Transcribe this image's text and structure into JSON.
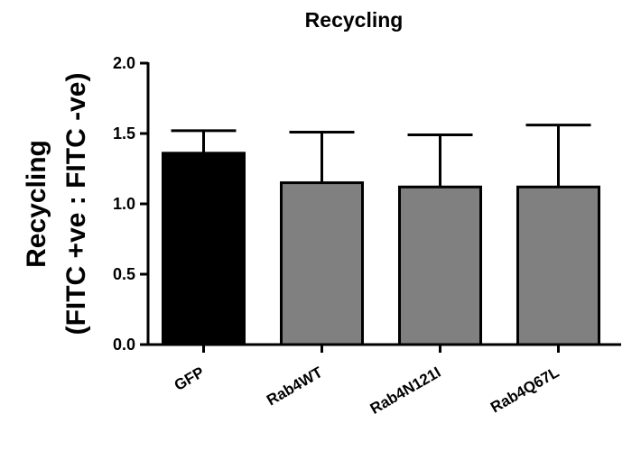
{
  "chart_data": {
    "type": "bar",
    "title": "Recycling",
    "ylabel_line1": "Recycling",
    "ylabel_line2": "(FITC  +ve : FITC -ve)",
    "xlabel": "",
    "categories": [
      "GFP",
      "Rab4WT",
      "Rab4N121I",
      "Rab4Q67L"
    ],
    "values": [
      1.36,
      1.15,
      1.12,
      1.12
    ],
    "errors": [
      0.16,
      0.36,
      0.37,
      0.44
    ],
    "colors": [
      "#000000",
      "#808080",
      "#808080",
      "#808080"
    ],
    "ylim": [
      0,
      2.0
    ],
    "yticks": [
      "0.0",
      "0.5",
      "1.0",
      "1.5",
      "2.0"
    ],
    "grid": false
  }
}
